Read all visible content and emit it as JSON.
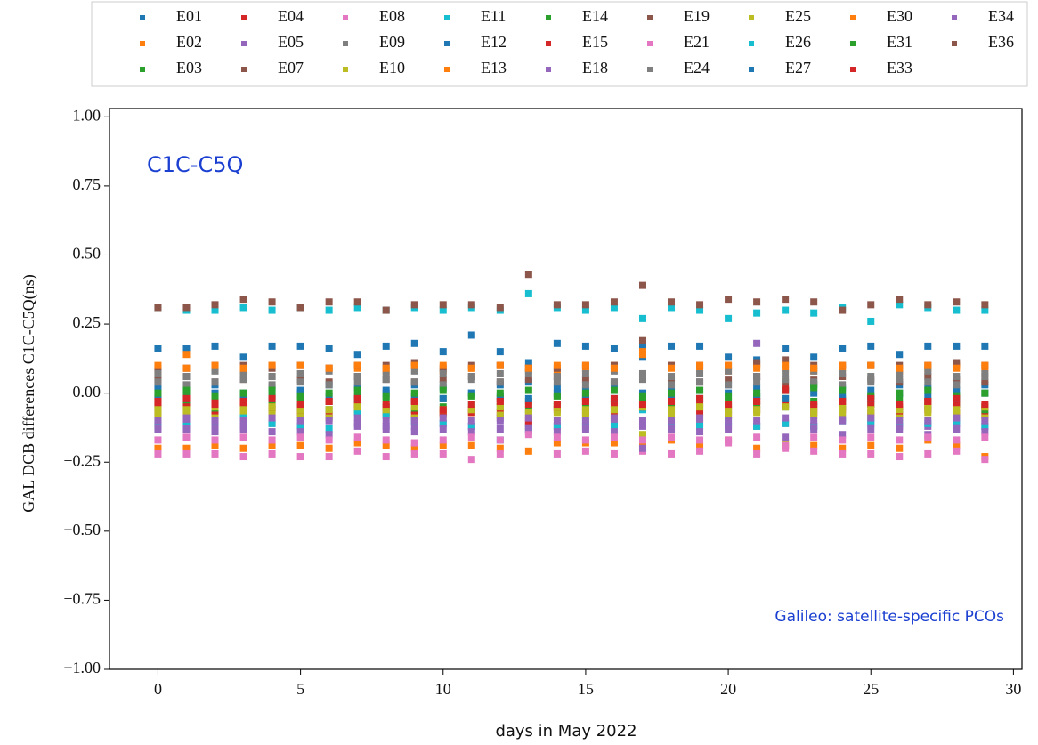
{
  "chart_data": {
    "type": "scatter",
    "annotation": "C1C-C5Q",
    "note": "Galileo: satellite-specific PCOs",
    "ylabel": "GAL DCB differences C1C-C5Q(ns)",
    "xlabel": "days in May 2022",
    "xlim": [
      -1.7,
      30.3
    ],
    "ylim": [
      -1,
      1.03
    ],
    "xticks": [
      0,
      5,
      10,
      15,
      20,
      25,
      30
    ],
    "yticks": [
      {
        "value": -1,
        "label": "−1.00"
      },
      {
        "value": -0.75,
        "label": "−0.75"
      },
      {
        "value": -0.5,
        "label": "−0.50"
      },
      {
        "value": -0.25,
        "label": "−0.25"
      },
      {
        "value": 0,
        "label": "0.00"
      },
      {
        "value": 0.25,
        "label": "0.25"
      },
      {
        "value": 0.5,
        "label": "0.50"
      },
      {
        "value": 0.75,
        "label": "0.75"
      },
      {
        "value": 1,
        "label": "1.00"
      }
    ],
    "legend": "top",
    "x": [
      0,
      1,
      2,
      3,
      4,
      5,
      6,
      7,
      8,
      9,
      10,
      11,
      12,
      13,
      14,
      15,
      16,
      17,
      18,
      19,
      20,
      21,
      22,
      23,
      24,
      25,
      26,
      27,
      28,
      29
    ],
    "series": [
      {
        "name": "E01",
        "color": "#1f77b4",
        "values": [
          0.02,
          0.01,
          0.03,
          0.0,
          0.02,
          0.01,
          0.03,
          0.02,
          0.01,
          0.03,
          0.02,
          0.0,
          0.03,
          0.04,
          0.02,
          0.01,
          0.03,
          0.13,
          0.02,
          0.01,
          0.03,
          0.02,
          0.01,
          0.03,
          0.02,
          0.01,
          0.03,
          0.02,
          0.01,
          0.03
        ]
      },
      {
        "name": "E02",
        "color": "#ff7f0e",
        "values": [
          -0.2,
          -0.2,
          -0.19,
          -0.2,
          -0.19,
          -0.19,
          -0.2,
          -0.18,
          -0.19,
          -0.2,
          -0.19,
          -0.19,
          -0.2,
          -0.21,
          -0.18,
          -0.18,
          -0.18,
          -0.19,
          -0.17,
          -0.19,
          -0.17,
          -0.2,
          -0.19,
          -0.19,
          -0.2,
          -0.19,
          -0.2,
          -0.17,
          -0.19,
          -0.23
        ]
      },
      {
        "name": "E03",
        "color": "#2ca02c",
        "values": [
          -0.05,
          -0.04,
          -0.06,
          -0.05,
          -0.04,
          -0.05,
          -0.06,
          -0.04,
          -0.05,
          -0.06,
          -0.05,
          -0.04,
          -0.05,
          -0.06,
          -0.04,
          -0.05,
          -0.06,
          -0.05,
          -0.04,
          -0.05,
          -0.06,
          -0.04,
          -0.05,
          0.03,
          -0.05,
          -0.04,
          -0.06,
          -0.05,
          -0.04,
          -0.05
        ]
      },
      {
        "name": "E04",
        "color": "#d62728",
        "values": [
          -0.07,
          -0.06,
          -0.08,
          -0.07,
          -0.06,
          -0.07,
          -0.08,
          -0.06,
          -0.07,
          -0.08,
          -0.07,
          -0.06,
          -0.07,
          -0.12,
          -0.06,
          -0.07,
          -0.08,
          -0.03,
          -0.06,
          -0.07,
          -0.08,
          -0.06,
          0.02,
          -0.07,
          -0.06,
          -0.07,
          -0.08,
          -0.06,
          -0.07,
          -0.08
        ]
      },
      {
        "name": "E05",
        "color": "#9467bd",
        "values": [
          -0.12,
          -0.11,
          -0.12,
          -0.12,
          -0.11,
          -0.12,
          -0.09,
          -0.11,
          -0.12,
          -0.12,
          -0.11,
          -0.12,
          -0.09,
          -0.11,
          -0.12,
          -0.12,
          -0.11,
          -0.12,
          -0.12,
          -0.11,
          -0.12,
          -0.12,
          -0.11,
          -0.12,
          -0.09,
          -0.11,
          -0.12,
          -0.12,
          -0.11,
          -0.12
        ]
      },
      {
        "name": "E07",
        "color": "#8c564b",
        "values": [
          0.05,
          0.06,
          0.04,
          0.05,
          0.06,
          0.05,
          0.04,
          0.06,
          0.05,
          0.04,
          0.05,
          0.06,
          0.04,
          0.05,
          0.06,
          0.05,
          0.04,
          0.06,
          0.05,
          0.04,
          0.05,
          0.06,
          0.04,
          0.05,
          0.06,
          0.05,
          0.04,
          0.06,
          0.05,
          0.04
        ]
      },
      {
        "name": "E08",
        "color": "#e377c2",
        "values": [
          -0.22,
          -0.22,
          -0.22,
          -0.23,
          -0.22,
          -0.23,
          -0.23,
          -0.21,
          -0.23,
          -0.22,
          -0.22,
          -0.24,
          -0.22,
          -0.14,
          -0.22,
          -0.21,
          -0.22,
          -0.21,
          -0.22,
          -0.21,
          -0.18,
          -0.22,
          -0.2,
          -0.21,
          -0.22,
          -0.22,
          -0.23,
          -0.22,
          -0.21,
          -0.24
        ]
      },
      {
        "name": "E09",
        "color": "#7f7f7f",
        "values": [
          0.04,
          0.03,
          0.04,
          0.05,
          0.03,
          0.04,
          0.03,
          0.04,
          0.05,
          0.04,
          0.03,
          0.05,
          0.04,
          0.07,
          0.04,
          0.03,
          0.04,
          0.05,
          0.03,
          0.04,
          0.03,
          0.04,
          0.05,
          0.04,
          0.03,
          0.04,
          0.05,
          0.04,
          0.03,
          0.06
        ]
      },
      {
        "name": "E10",
        "color": "#bcbd22",
        "values": [
          -0.08,
          -0.07,
          -0.09,
          -0.08,
          -0.07,
          -0.08,
          -0.09,
          -0.07,
          -0.08,
          -0.09,
          -0.08,
          -0.07,
          -0.08,
          -0.07,
          -0.07,
          -0.08,
          -0.09,
          -0.15,
          -0.08,
          -0.09,
          -0.08,
          -0.07,
          -0.18,
          -0.08,
          -0.07,
          -0.08,
          -0.09,
          -0.07,
          -0.08,
          -0.09
        ]
      },
      {
        "name": "E11",
        "color": "#17becf",
        "values": [
          -0.11,
          -0.12,
          -0.1,
          -0.09,
          -0.11,
          -0.12,
          -0.13,
          -0.07,
          -0.08,
          -0.1,
          -0.11,
          -0.12,
          -0.17,
          -0.13,
          -0.12,
          -0.1,
          -0.12,
          -0.06,
          -0.11,
          -0.12,
          -0.1,
          -0.12,
          -0.11,
          -0.12,
          -0.1,
          -0.1,
          -0.11,
          -0.11,
          -0.1,
          -0.12
        ]
      },
      {
        "name": "E12",
        "color": "#1f77b4",
        "values": [
          0.16,
          0.16,
          0.17,
          0.13,
          0.17,
          0.17,
          0.16,
          0.14,
          0.17,
          0.18,
          0.15,
          0.21,
          0.15,
          0.11,
          0.18,
          0.17,
          0.16,
          0.17,
          0.17,
          0.17,
          0.13,
          0.12,
          0.16,
          0.13,
          0.16,
          0.17,
          0.14,
          0.17,
          0.17,
          0.17
        ]
      },
      {
        "name": "E13",
        "color": "#ff7f0e",
        "values": [
          0.08,
          0.14,
          0.09,
          0.08,
          0.1,
          0.1,
          0.09,
          0.09,
          0.08,
          0.1,
          0.08,
          0.09,
          0.1,
          0.09,
          0.08,
          0.09,
          0.1,
          0.15,
          0.1,
          0.09,
          0.08,
          0.1,
          0.09,
          0.08,
          0.09,
          0.1,
          0.08,
          0.09,
          0.1,
          0.09
        ]
      },
      {
        "name": "E14",
        "color": "#2ca02c",
        "values": [
          -0.02,
          -0.01,
          -0.03,
          -0.02,
          -0.01,
          -0.02,
          -0.03,
          -0.01,
          -0.02,
          -0.03,
          -0.02,
          -0.01,
          -0.02,
          -0.03,
          -0.01,
          -0.02,
          -0.03,
          -0.02,
          -0.01,
          -0.02,
          -0.03,
          -0.01,
          -0.02,
          -0.03,
          -0.02,
          -0.01,
          -0.02,
          -0.03,
          -0.01,
          -0.06
        ]
      },
      {
        "name": "E15",
        "color": "#d62728",
        "values": [
          -0.04,
          -0.05,
          -0.03,
          -0.04,
          -0.05,
          -0.06,
          -0.03,
          -0.04,
          -0.05,
          -0.03,
          -0.07,
          -0.07,
          -0.03,
          -0.04,
          -0.05,
          -0.03,
          -0.04,
          -0.05,
          -0.03,
          -0.04,
          -0.05,
          -0.03,
          -0.04,
          -0.05,
          -0.03,
          -0.04,
          -0.05,
          -0.03,
          -0.04,
          -0.05
        ]
      },
      {
        "name": "E18",
        "color": "#9467bd",
        "values": [
          -0.13,
          -0.13,
          -0.14,
          -0.13,
          -0.14,
          -0.14,
          -0.15,
          -0.12,
          -0.13,
          -0.14,
          -0.13,
          -0.14,
          -0.13,
          -0.13,
          -0.14,
          -0.13,
          -0.14,
          -0.2,
          -0.13,
          -0.14,
          -0.13,
          0.18,
          -0.16,
          -0.13,
          -0.15,
          -0.13,
          -0.13,
          -0.15,
          -0.13,
          -0.14
        ]
      },
      {
        "name": "E19",
        "color": "#8c564b",
        "values": [
          0.09,
          0.09,
          0.1,
          0.1,
          0.09,
          0.1,
          0.09,
          0.1,
          0.1,
          0.11,
          0.09,
          0.1,
          0.1,
          0.09,
          0.09,
          0.1,
          0.1,
          0.19,
          0.1,
          0.1,
          0.1,
          0.11,
          0.12,
          0.1,
          0.1,
          0.1,
          0.1,
          0.1,
          0.11,
          0.1
        ]
      },
      {
        "name": "E21",
        "color": "#e377c2",
        "values": [
          -0.17,
          -0.16,
          -0.17,
          -0.16,
          -0.17,
          -0.16,
          -0.17,
          -0.16,
          -0.17,
          -0.18,
          -0.17,
          -0.16,
          -0.17,
          -0.15,
          -0.16,
          -0.17,
          -0.16,
          -0.17,
          -0.16,
          -0.17,
          -0.17,
          -0.16,
          -0.19,
          -0.16,
          -0.17,
          -0.16,
          -0.17,
          -0.16,
          -0.17,
          -0.16
        ]
      },
      {
        "name": "E24",
        "color": "#7f7f7f",
        "values": [
          0.07,
          0.06,
          0.08,
          0.07,
          0.06,
          0.07,
          0.08,
          0.06,
          0.07,
          0.08,
          0.07,
          0.06,
          0.07,
          0.08,
          0.06,
          0.07,
          0.08,
          0.07,
          0.06,
          0.07,
          0.08,
          0.06,
          0.07,
          0.08,
          0.07,
          0.06,
          0.07,
          0.08,
          0.06,
          0.07
        ]
      },
      {
        "name": "E25",
        "color": "#bcbd22",
        "values": [
          -0.06,
          -0.06,
          -0.05,
          -0.06,
          -0.05,
          -0.06,
          -0.06,
          -0.05,
          -0.06,
          -0.05,
          -0.06,
          -0.06,
          -0.05,
          -0.08,
          -0.05,
          -0.06,
          -0.06,
          -0.05,
          -0.06,
          -0.05,
          -0.06,
          -0.06,
          -0.05,
          -0.06,
          -0.05,
          -0.06,
          -0.06,
          -0.05,
          -0.06,
          -0.05
        ]
      },
      {
        "name": "E26",
        "color": "#17becf",
        "values": [
          0.31,
          0.3,
          0.3,
          0.31,
          0.3,
          0.31,
          0.3,
          0.31,
          0.3,
          0.31,
          0.3,
          0.31,
          0.3,
          0.36,
          0.31,
          0.3,
          0.31,
          0.27,
          0.31,
          0.3,
          0.27,
          0.29,
          0.3,
          0.29,
          0.31,
          0.26,
          0.32,
          0.31,
          0.3,
          0.3
        ]
      },
      {
        "name": "E27",
        "color": "#1f77b4",
        "values": [
          -0.01,
          -0.02,
          0.0,
          -0.01,
          -0.02,
          0.0,
          -0.01,
          -0.02,
          0.0,
          -0.01,
          -0.02,
          0.0,
          -0.01,
          -0.02,
          0.0,
          -0.01,
          -0.02,
          0.0,
          -0.01,
          -0.02,
          0.0,
          -0.01,
          -0.02,
          0.0,
          -0.01,
          -0.02,
          0.0,
          -0.01,
          -0.02,
          0.0
        ]
      },
      {
        "name": "E30",
        "color": "#ff7f0e",
        "values": [
          0.1,
          0.09,
          0.1,
          0.09,
          0.1,
          0.1,
          0.09,
          0.1,
          0.09,
          0.1,
          0.1,
          0.09,
          0.1,
          0.09,
          0.1,
          0.1,
          0.09,
          0.14,
          0.09,
          0.1,
          0.1,
          0.09,
          0.1,
          0.09,
          0.1,
          0.1,
          0.09,
          0.1,
          0.09,
          0.1
        ]
      },
      {
        "name": "E31",
        "color": "#2ca02c",
        "values": [
          0.0,
          0.01,
          -0.01,
          0.0,
          0.01,
          -0.01,
          0.0,
          0.01,
          -0.01,
          0.0,
          0.01,
          -0.01,
          0.0,
          0.01,
          -0.01,
          0.0,
          0.01,
          -0.01,
          0.0,
          0.01,
          -0.01,
          0.0,
          0.01,
          0.02,
          0.01,
          -0.01,
          0.0,
          0.01,
          -0.01,
          0.0
        ]
      },
      {
        "name": "E33",
        "color": "#d62728",
        "values": [
          -0.03,
          -0.02,
          -0.04,
          -0.03,
          -0.02,
          -0.04,
          -0.03,
          -0.02,
          -0.04,
          -0.03,
          -0.06,
          -0.04,
          -0.03,
          -0.1,
          -0.04,
          -0.03,
          -0.02,
          -0.04,
          -0.03,
          -0.02,
          -0.04,
          -0.03,
          0.01,
          -0.04,
          -0.03,
          -0.02,
          -0.04,
          -0.03,
          -0.02,
          -0.04
        ]
      },
      {
        "name": "E34",
        "color": "#9467bd",
        "values": [
          -0.1,
          -0.09,
          -0.1,
          -0.1,
          -0.09,
          -0.1,
          -0.1,
          -0.09,
          -0.1,
          -0.1,
          -0.09,
          -0.1,
          -0.1,
          -0.09,
          -0.1,
          -0.1,
          -0.09,
          -0.1,
          -0.1,
          -0.09,
          -0.1,
          -0.1,
          -0.09,
          -0.1,
          -0.1,
          -0.09,
          -0.1,
          -0.1,
          -0.09,
          -0.1
        ]
      },
      {
        "name": "E36",
        "color": "#8c564b",
        "values": [
          0.31,
          0.31,
          0.32,
          0.34,
          0.33,
          0.31,
          0.33,
          0.33,
          0.3,
          0.32,
          0.32,
          0.32,
          0.31,
          0.43,
          0.32,
          0.32,
          0.33,
          0.39,
          0.33,
          0.32,
          0.34,
          0.33,
          0.34,
          0.33,
          0.3,
          0.32,
          0.34,
          0.32,
          0.33,
          0.32
        ]
      }
    ]
  }
}
